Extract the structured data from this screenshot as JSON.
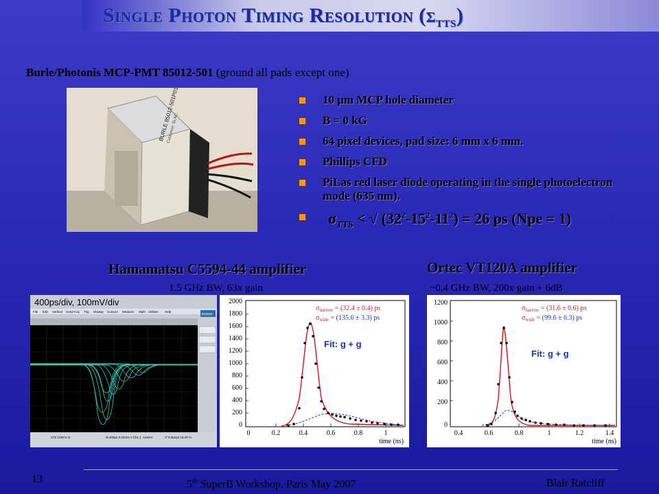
{
  "slide": {
    "title_main": "Single Photon Timing Resolution (σ",
    "title_sub": "TTS",
    "title_end": ")",
    "subtitle_bold": "Burle/Photonis MCP-PMT 85012-501",
    "subtitle_rest": " (ground all pads except one)",
    "photo_label_1": "BURLE 85012-501P01",
    "photo_label_2": "Customer: SLAC"
  },
  "bullets": [
    "10 μm MCP hole diameter",
    "B = 0 kG",
    "64 pixel devices, pad size: 6 mm x 6 mm.",
    "Phillips CFD",
    "PiLas red laser diode operating in the single photoelectron mode (635 nm)."
  ],
  "formula": {
    "sigma": "σ",
    "sub": "TTS",
    "rest_a": " < √ (32",
    "sup1": "2",
    "rest_b": "-15",
    "sup2": "2",
    "rest_c": "-11",
    "sup3": "2",
    "rest_d": ") = 26 ps (Npe = 1)"
  },
  "amp_left": {
    "title": "Hamamatsu C5594-44 amplifier",
    "sub": "1.5 GHz BW, 63x gain"
  },
  "amp_right": {
    "title": "Ortec VT120A amplifier",
    "sub": "~0.4 GHz BW, 200x gain + 6dB"
  },
  "scope": {
    "header": "400ps/div, 100mV/div",
    "menu": [
      "File",
      "Edit",
      "Vertical",
      "Horiz/Acq",
      "Trig",
      "Display",
      "Cursors",
      "Measure",
      "Math",
      "Utilities",
      "Help"
    ],
    "button": "Buttons",
    "status_left": "Ch2  100mV  Ω",
    "status_mid": "M 400ps 5.0GS/s  A Ch1 ⨍ -104mV",
    "status_right": "IT 8.0ps/pt  10.40 %"
  },
  "plot_left": {
    "narrow": "(32.4 ± 0.4) ps",
    "wide": "(135.6 ± 3.3) ps",
    "fit": "Fit: g + g",
    "xlabel": "time (ns)",
    "yticks": [
      "2000",
      "1800",
      "1600",
      "1400",
      "1200",
      "1000",
      "800",
      "600",
      "400",
      "200",
      "0"
    ],
    "xticks": [
      "0",
      "0.2",
      "0.4",
      "0.6",
      "0.8",
      "1"
    ]
  },
  "plot_right": {
    "narrow": "(31.6 ± 0.6) ps",
    "wide": "(99.6 ± 6.3) ps",
    "fit": "Fit: g + g",
    "xlabel": "time (ns)",
    "yticks": [
      "1200",
      "1000",
      "800",
      "600",
      "400",
      "200",
      "0"
    ],
    "xticks": [
      "0.4",
      "0.6",
      "0.8",
      "1",
      "1.2",
      "1.4"
    ]
  },
  "sigma_labels": {
    "sigma": "σ",
    "narrow": "narrow",
    "wide": "wide",
    "eq": " = "
  },
  "footer": {
    "page": "13",
    "event_a": "5",
    "event_sup": "th",
    "event_b": " SuperB Workshop, Paris  May 2007",
    "author": "Blair Ratcliff"
  },
  "colors": {
    "accent_bullet": "#ff9900",
    "fit_red": "#e01010",
    "fit_blue": "#1030d0",
    "trace": "#40e0d0"
  }
}
